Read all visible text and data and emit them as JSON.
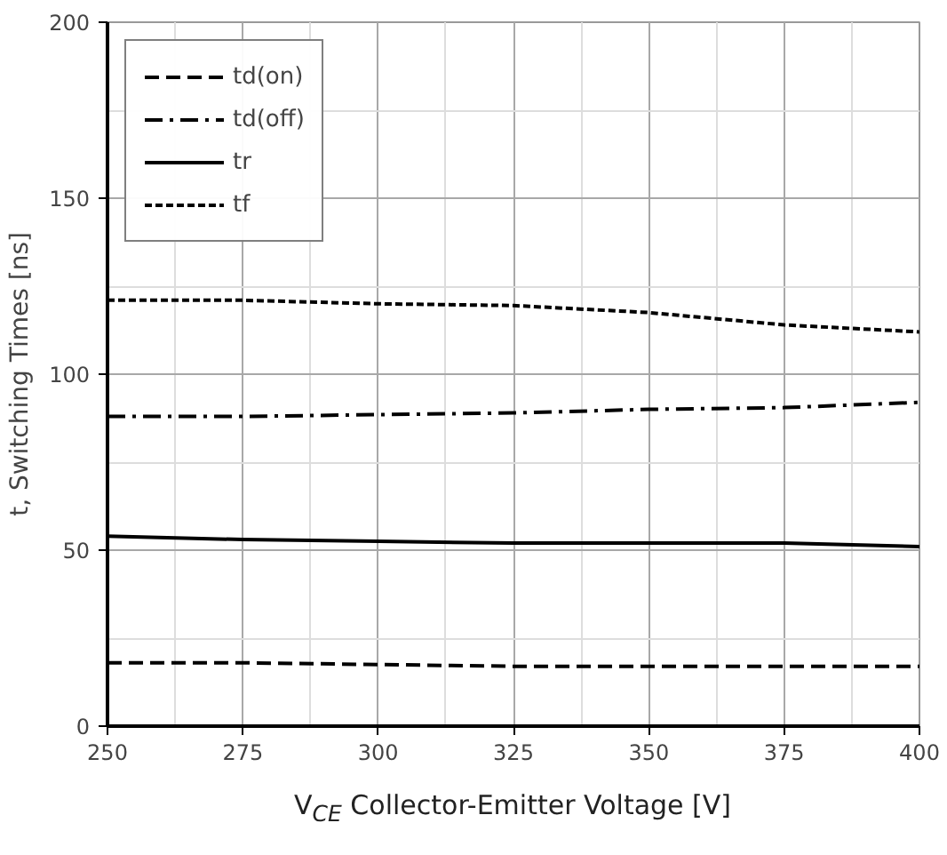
{
  "chart_data": {
    "type": "line",
    "xlabel": "V$_{CE}$ Collector-Emitter Voltage [V]",
    "ylabel": "t, Switching Times [ns]",
    "x": [
      250,
      275,
      300,
      325,
      350,
      375,
      400
    ],
    "xlim": [
      250,
      400
    ],
    "xticks": [
      250,
      275,
      300,
      325,
      350,
      375,
      400
    ],
    "ylim": [
      0,
      200
    ],
    "yticks": [
      0,
      50,
      100,
      150,
      200
    ],
    "grid": true,
    "legend": "top left",
    "marker": "none",
    "series": [
      {
        "name": "td(on)",
        "color": "#000000",
        "line_style": "dashed",
        "values": [
          18,
          18,
          17.5,
          17,
          17,
          17,
          17
        ]
      },
      {
        "name": "td(off)",
        "color": "#000000",
        "line_style": "dashdot",
        "values": [
          88,
          88,
          88.5,
          89,
          90,
          90.5,
          92
        ]
      },
      {
        "name": "tr",
        "color": "#000000",
        "line_style": "solid",
        "values": [
          54,
          53,
          52.5,
          52,
          52,
          52,
          51
        ]
      },
      {
        "name": "tf",
        "color": "#000000",
        "line_style": "dotted",
        "values": [
          121,
          121,
          120,
          119.5,
          117.5,
          114,
          112
        ]
      }
    ]
  }
}
